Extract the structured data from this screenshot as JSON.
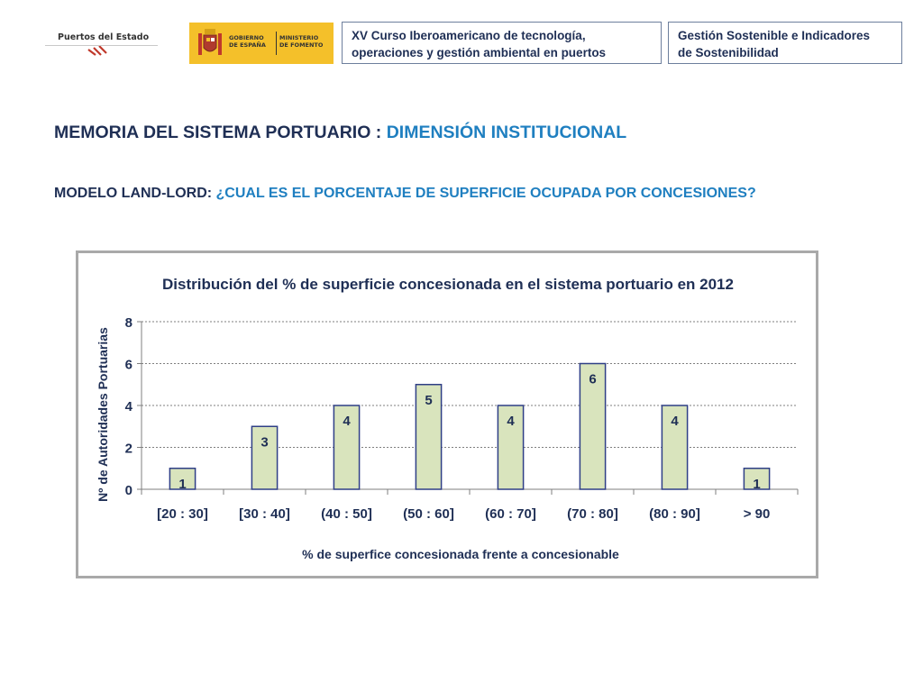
{
  "header": {
    "logo_text": "Puertos del Estado",
    "gov_left": [
      "GOBIERNO",
      "DE ESPAÑA"
    ],
    "gov_right": [
      "MINISTERIO",
      "DE FOMENTO"
    ],
    "course_lines": [
      "XV Curso Iberoamericano de tecnología,",
      "operaciones y gestión ambiental en puertos"
    ],
    "module_lines": [
      "Gestión Sostenible e Indicadores",
      "de Sostenibilidad"
    ]
  },
  "slide": {
    "title_prefix": "MEMORIA DEL SISTEMA PORTUARIO : ",
    "title_accent": "DIMENSIÓN INSTITUCIONAL",
    "subtitle_prefix": "MODELO LAND-LORD: ",
    "subtitle_accent": "¿CUAL ES EL PORCENTAJE DE SUPERFICIE OCUPADA POR CONCESIONES?"
  },
  "colors": {
    "bar_fill": "#d9e4bd",
    "bar_stroke": "#2f3f86",
    "text_dark": "#1f2f55",
    "accent": "#1f7fc0"
  },
  "chart_data": {
    "type": "bar",
    "title": "Distribución del % de superficie concesionada en el sistema portuario en 2012",
    "xlabel": "% de superfice concesionada frente a concesionable",
    "ylabel": "Nº de Autoridades Portuarias",
    "categories": [
      "[20 : 30]",
      "[30 : 40]",
      "(40 : 50]",
      "(50 : 60]",
      "(60 : 70]",
      "(70 : 80]",
      "(80 : 90]",
      "> 90"
    ],
    "values": [
      1,
      3,
      4,
      5,
      4,
      6,
      4,
      1
    ],
    "data_labels": [
      "1",
      "3",
      "4",
      "5",
      "4",
      "6",
      "4",
      "1"
    ],
    "ylim": [
      0,
      8
    ],
    "yticks": [
      0,
      2,
      4,
      6,
      8
    ],
    "grid": true
  }
}
